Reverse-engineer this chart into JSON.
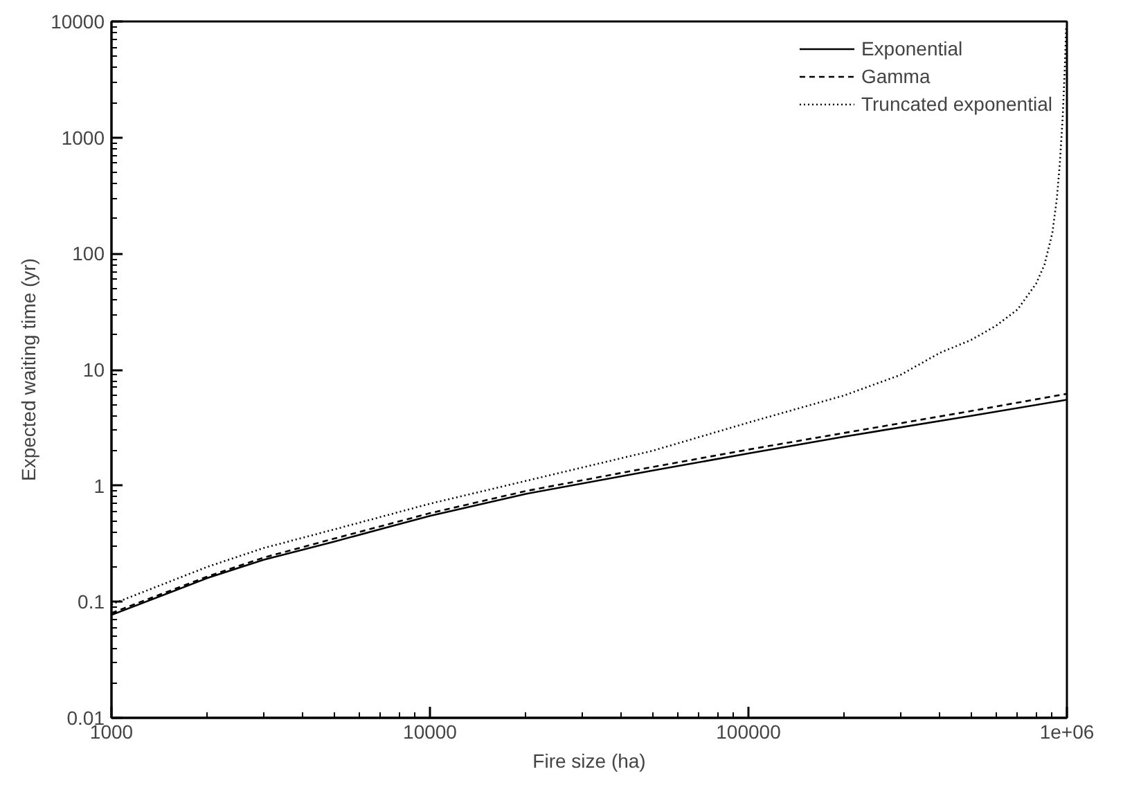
{
  "chart_data": {
    "type": "line",
    "xlabel": "Fire size (ha)",
    "ylabel": "Expected waiting time (yr)",
    "log": "xy",
    "grid": false,
    "legend": "top right",
    "marker": "none",
    "xlim": [
      1000,
      1000000
    ],
    "ylim": [
      0.01,
      10000
    ],
    "xticks": [
      1000,
      10000,
      100000,
      {
        "value": 1000000,
        "label": "1e+06"
      }
    ],
    "yticks": [
      0.01,
      0.1,
      1,
      10,
      100,
      1000,
      10000
    ],
    "series": [
      {
        "name": "Exponential",
        "color": "#000000",
        "line_style": "solid",
        "x": [
          1000,
          2000,
          3000,
          5000,
          10000,
          20000,
          50000,
          100000,
          200000,
          500000,
          1000000
        ],
        "values": [
          0.077,
          0.16,
          0.23,
          0.33,
          0.55,
          0.85,
          1.35,
          1.9,
          2.65,
          4.0,
          5.5
        ]
      },
      {
        "name": "Gamma",
        "color": "#000000",
        "line_style": "dashed",
        "x": [
          1000,
          2000,
          3000,
          5000,
          10000,
          20000,
          50000,
          100000,
          200000,
          500000,
          1000000
        ],
        "values": [
          0.08,
          0.165,
          0.24,
          0.35,
          0.58,
          0.9,
          1.45,
          2.05,
          2.85,
          4.4,
          6.2
        ]
      },
      {
        "name": "Truncated exponential",
        "color": "#000000",
        "line_style": "dotted",
        "x": [
          1000,
          2000,
          3000,
          5000,
          10000,
          20000,
          50000,
          100000,
          200000,
          300000,
          400000,
          500000,
          600000,
          700000,
          800000,
          850000,
          900000,
          930000,
          950000,
          970000,
          985000,
          995000
        ],
        "values": [
          0.095,
          0.2,
          0.29,
          0.42,
          0.7,
          1.1,
          2.0,
          3.5,
          6,
          9,
          14,
          18,
          24,
          33,
          55,
          80,
          150,
          300,
          600,
          1500,
          4000,
          9000
        ]
      }
    ]
  }
}
